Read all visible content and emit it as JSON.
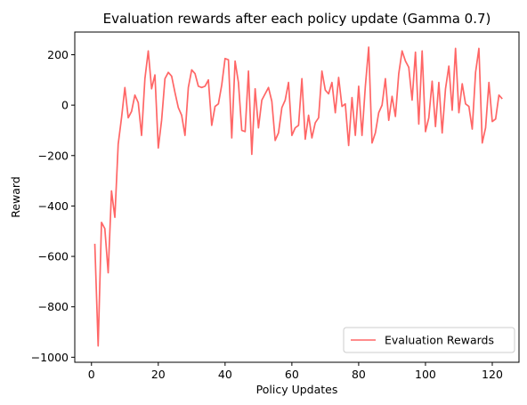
{
  "chart_data": {
    "type": "line",
    "title": "Evaluation rewards after each policy update (Gamma 0.7)",
    "xlabel": "Policy Updates",
    "ylabel": "Reward",
    "xlim": [
      -5,
      128
    ],
    "ylim": [
      -1020,
      290
    ],
    "xticks": [
      0,
      20,
      40,
      60,
      80,
      100,
      120
    ],
    "yticks": [
      -1000,
      -800,
      -600,
      -400,
      -200,
      0,
      200
    ],
    "grid": false,
    "legend_position": "lower right",
    "series": [
      {
        "name": "Evaluation Rewards",
        "color": "#ff6666",
        "x": [
          1,
          2,
          3,
          4,
          5,
          6,
          7,
          8,
          9,
          10,
          11,
          12,
          13,
          14,
          15,
          16,
          17,
          18,
          19,
          20,
          21,
          22,
          23,
          24,
          25,
          26,
          27,
          28,
          29,
          30,
          31,
          32,
          33,
          34,
          35,
          36,
          37,
          38,
          39,
          40,
          41,
          42,
          43,
          44,
          45,
          46,
          47,
          48,
          49,
          50,
          51,
          52,
          53,
          54,
          55,
          56,
          57,
          58,
          59,
          60,
          61,
          62,
          63,
          64,
          65,
          66,
          67,
          68,
          69,
          70,
          71,
          72,
          73,
          74,
          75,
          76,
          77,
          78,
          79,
          80,
          81,
          82,
          83,
          84,
          85,
          86,
          87,
          88,
          89,
          90,
          91,
          92,
          93,
          94,
          95,
          96,
          97,
          98,
          99,
          100,
          101,
          102,
          103,
          104,
          105,
          106,
          107,
          108,
          109,
          110,
          111,
          112,
          113,
          114,
          115,
          116,
          117,
          118,
          119,
          120,
          121,
          122,
          123
        ],
        "values": [
          -550,
          -955,
          -465,
          -490,
          -665,
          -340,
          -445,
          -155,
          -50,
          70,
          -50,
          -25,
          40,
          10,
          -120,
          105,
          215,
          65,
          120,
          -170,
          -60,
          105,
          130,
          115,
          50,
          -10,
          -40,
          -120,
          70,
          140,
          125,
          75,
          70,
          75,
          100,
          -80,
          -5,
          5,
          80,
          185,
          180,
          -130,
          175,
          90,
          -100,
          -105,
          135,
          -195,
          65,
          -90,
          20,
          45,
          70,
          15,
          -140,
          -110,
          -10,
          20,
          90,
          -120,
          -90,
          -80,
          105,
          -135,
          -40,
          -130,
          -70,
          -50,
          135,
          60,
          45,
          90,
          -30,
          110,
          -5,
          5,
          -160,
          30,
          -120,
          75,
          -120,
          75,
          230,
          -150,
          -110,
          -30,
          0,
          105,
          -60,
          35,
          -45,
          125,
          215,
          175,
          150,
          20,
          210,
          -75,
          215,
          -105,
          -50,
          95,
          -85,
          90,
          -110,
          65,
          155,
          -20,
          225,
          -30,
          85,
          5,
          -5,
          -95,
          130,
          225,
          -150,
          -90,
          90,
          -65,
          -55,
          40,
          25
        ]
      }
    ]
  }
}
